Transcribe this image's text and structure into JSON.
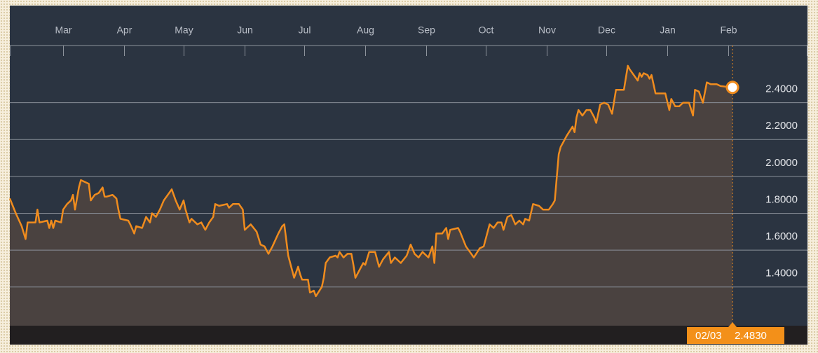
{
  "chart_data": {
    "type": "line",
    "x": [
      "02/02",
      "02/05",
      "02/08",
      "02/10",
      "02/11",
      "02/15",
      "02/16",
      "02/17",
      "02/21",
      "02/22",
      "02/23",
      "02/24",
      "02/25",
      "02/28",
      "03/01",
      "03/03",
      "03/05",
      "03/06",
      "03/07",
      "03/09",
      "03/10",
      "03/12",
      "03/14",
      "03/15",
      "03/17",
      "03/19",
      "03/21",
      "03/22",
      "03/23",
      "03/26",
      "03/28",
      "03/29",
      "03/30",
      "04/03",
      "04/04",
      "04/06",
      "04/07",
      "04/10",
      "04/11",
      "04/12",
      "04/14",
      "04/15",
      "04/17",
      "04/19",
      "04/21",
      "04/23",
      "04/25",
      "04/27",
      "04/29",
      "05/01",
      "05/02",
      "05/04",
      "05/05",
      "05/08",
      "05/10",
      "05/12",
      "05/14",
      "05/16",
      "05/17",
      "05/19",
      "05/23",
      "05/24",
      "05/26",
      "05/29",
      "05/31",
      "06/01",
      "06/02",
      "06/04",
      "06/07",
      "06/09",
      "06/11",
      "06/13",
      "06/15",
      "06/18",
      "06/20",
      "06/21",
      "06/23",
      "06/24",
      "06/26",
      "06/28",
      "06/29",
      "06/30",
      "07/03",
      "07/04",
      "07/06",
      "07/07",
      "07/10",
      "07/11",
      "07/12",
      "07/14",
      "07/17",
      "07/18",
      "07/19",
      "07/21",
      "07/23",
      "07/25",
      "07/26",
      "07/27",
      "07/29",
      "07/31",
      "08/01",
      "08/03",
      "08/06",
      "08/08",
      "08/10",
      "08/13",
      "08/14",
      "08/16",
      "08/19",
      "08/22",
      "08/24",
      "08/26",
      "08/28",
      "08/30",
      "09/02",
      "09/04",
      "09/05",
      "09/06",
      "09/09",
      "09/11",
      "09/12",
      "09/13",
      "09/17",
      "09/18",
      "09/21",
      "09/23",
      "09/25",
      "09/28",
      "09/30",
      "10/02",
      "10/03",
      "10/05",
      "10/07",
      "10/09",
      "10/10",
      "10/12",
      "10/14",
      "10/16",
      "10/18",
      "10/20",
      "10/21",
      "10/23",
      "10/25",
      "10/28",
      "10/30",
      "11/02",
      "11/04",
      "11/05",
      "11/07",
      "11/08",
      "11/09",
      "11/11",
      "11/14",
      "11/15",
      "11/16",
      "11/17",
      "11/19",
      "11/21",
      "11/23",
      "11/25",
      "11/26",
      "11/28",
      "11/30",
      "12/02",
      "12/04",
      "12/06",
      "12/09",
      "12/10",
      "12/12",
      "12/13",
      "12/15",
      "12/17",
      "12/18",
      "12/19",
      "12/20",
      "12/22",
      "12/23",
      "12/24",
      "12/26",
      "12/28",
      "12/31",
      "01/02",
      "01/03",
      "01/05",
      "01/07",
      "01/09",
      "01/12",
      "01/14",
      "01/15",
      "01/17",
      "01/19",
      "01/21",
      "01/23",
      "01/26",
      "01/28",
      "02/03"
    ],
    "values": [
      1.88,
      1.8,
      1.73,
      1.66,
      1.75,
      1.75,
      1.82,
      1.75,
      1.76,
      1.72,
      1.76,
      1.72,
      1.76,
      1.75,
      1.82,
      1.85,
      1.87,
      1.9,
      1.82,
      1.94,
      1.98,
      1.97,
      1.96,
      1.87,
      1.9,
      1.91,
      1.94,
      1.89,
      1.89,
      1.9,
      1.88,
      1.82,
      1.77,
      1.76,
      1.74,
      1.69,
      1.73,
      1.72,
      1.75,
      1.78,
      1.75,
      1.8,
      1.78,
      1.82,
      1.87,
      1.9,
      1.93,
      1.87,
      1.82,
      1.87,
      1.82,
      1.75,
      1.77,
      1.74,
      1.75,
      1.71,
      1.75,
      1.78,
      1.85,
      1.84,
      1.85,
      1.83,
      1.85,
      1.85,
      1.82,
      1.71,
      1.72,
      1.74,
      1.7,
      1.63,
      1.62,
      1.58,
      1.62,
      1.69,
      1.73,
      1.74,
      1.57,
      1.53,
      1.45,
      1.51,
      1.47,
      1.44,
      1.44,
      1.37,
      1.38,
      1.35,
      1.4,
      1.45,
      1.53,
      1.56,
      1.57,
      1.56,
      1.59,
      1.56,
      1.58,
      1.58,
      1.52,
      1.45,
      1.49,
      1.53,
      1.52,
      1.59,
      1.59,
      1.51,
      1.55,
      1.59,
      1.53,
      1.56,
      1.53,
      1.57,
      1.63,
      1.58,
      1.56,
      1.59,
      1.56,
      1.62,
      1.53,
      1.69,
      1.69,
      1.72,
      1.66,
      1.71,
      1.72,
      1.7,
      1.62,
      1.59,
      1.56,
      1.61,
      1.62,
      1.7,
      1.74,
      1.72,
      1.75,
      1.75,
      1.71,
      1.78,
      1.79,
      1.74,
      1.76,
      1.74,
      1.77,
      1.76,
      1.85,
      1.84,
      1.82,
      1.82,
      1.85,
      1.87,
      2.12,
      2.16,
      2.18,
      2.22,
      2.27,
      2.24,
      2.32,
      2.36,
      2.33,
      2.36,
      2.36,
      2.32,
      2.29,
      2.39,
      2.4,
      2.39,
      2.34,
      2.47,
      2.47,
      2.47,
      2.6,
      2.58,
      2.55,
      2.52,
      2.56,
      2.54,
      2.56,
      2.55,
      2.53,
      2.55,
      2.45,
      2.45,
      2.45,
      2.36,
      2.42,
      2.38,
      2.38,
      2.4,
      2.4,
      2.33,
      2.47,
      2.46,
      2.4,
      2.51,
      2.5,
      2.5,
      2.49,
      2.483
    ],
    "end_label": "2.4830",
    "color": "#f08c1e",
    "ylim": [
      1.19,
      2.71
    ],
    "yticks": [
      {
        "value": 1.4,
        "label": "1.4000"
      },
      {
        "value": 1.6,
        "label": "1.6000"
      },
      {
        "value": 1.8,
        "label": "1.8000"
      },
      {
        "value": 2.0,
        "label": "2.0000"
      },
      {
        "value": 2.2,
        "label": "2.2000"
      },
      {
        "value": 2.4,
        "label": "2.4000"
      }
    ],
    "xticks": [
      {
        "value": "03/01",
        "label": "Mar"
      },
      {
        "value": "04/01",
        "label": "Apr"
      },
      {
        "value": "05/01",
        "label": "May"
      },
      {
        "value": "06/01",
        "label": "Jun"
      },
      {
        "value": "07/01",
        "label": "Jul"
      },
      {
        "value": "08/01",
        "label": "Aug"
      },
      {
        "value": "09/01",
        "label": "Sep"
      },
      {
        "value": "10/01",
        "label": "Oct"
      },
      {
        "value": "11/01",
        "label": "Nov"
      },
      {
        "value": "12/01",
        "label": "Dec"
      },
      {
        "value": "01/01",
        "label": "Jan"
      },
      {
        "value": "02/01",
        "label": "Feb"
      }
    ],
    "grid": true
  }
}
